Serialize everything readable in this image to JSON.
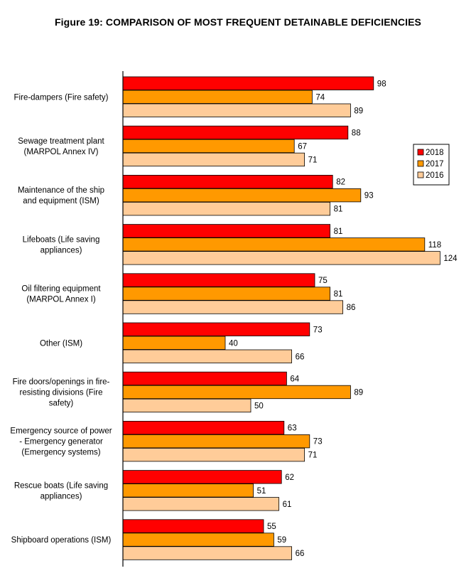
{
  "chart_data": {
    "type": "bar",
    "orientation": "horizontal",
    "title": "Figure 19: COMPARISON OF MOST FREQUENT DETAINABLE DEFICIENCIES",
    "categories": [
      [
        "Fire-dampers (Fire safety)"
      ],
      [
        "Sewage treatment plant",
        "(MARPOL Annex IV)"
      ],
      [
        "Maintenance of the ship",
        "and equipment (ISM)"
      ],
      [
        "Lifeboats (Life saving",
        "appliances)"
      ],
      [
        "Oil filtering equipment",
        "(MARPOL Annex I)"
      ],
      [
        "Other (ISM)"
      ],
      [
        "Fire doors/openings in fire-",
        "resisting divisions (Fire",
        "safety)"
      ],
      [
        "Emergency source of power",
        "- Emergency generator",
        "(Emergency systems)"
      ],
      [
        "Rescue boats (Life saving",
        "appliances)"
      ],
      [
        "Shipboard operations (ISM)"
      ]
    ],
    "series": [
      {
        "name": "2018",
        "color": "#ff0000",
        "values": [
          98,
          88,
          82,
          81,
          75,
          73,
          64,
          63,
          62,
          55
        ]
      },
      {
        "name": "2017",
        "color": "#ff9900",
        "values": [
          74,
          67,
          93,
          118,
          81,
          40,
          89,
          73,
          51,
          59
        ]
      },
      {
        "name": "2016",
        "color": "#ffcc99",
        "values": [
          89,
          71,
          81,
          124,
          86,
          66,
          50,
          71,
          61,
          66
        ]
      }
    ],
    "xlim": [
      0,
      130
    ],
    "grid": false,
    "data_labels": true,
    "legend_position": "right"
  }
}
